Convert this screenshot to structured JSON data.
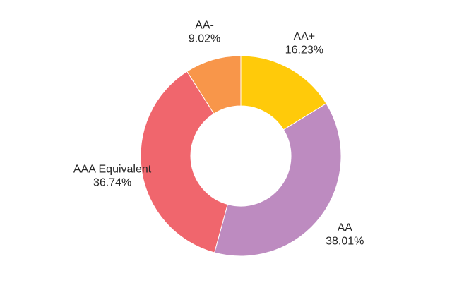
{
  "chart_data": {
    "type": "pie",
    "variant": "donut",
    "title": "",
    "start": "top",
    "direction": "clockwise",
    "slices": [
      {
        "label": "AA+",
        "value": 16.23,
        "value_label": "16.23%",
        "color": "#FFCA0A"
      },
      {
        "label": "AA",
        "value": 38.01,
        "value_label": "38.01%",
        "color": "#BD8BC0"
      },
      {
        "label": "AAA Equivalent",
        "value": 36.74,
        "value_label": "36.74%",
        "color": "#F0666D"
      },
      {
        "label": "AA-",
        "value": 9.02,
        "value_label": "9.02%",
        "color": "#F8964A"
      }
    ],
    "legend": "none"
  }
}
